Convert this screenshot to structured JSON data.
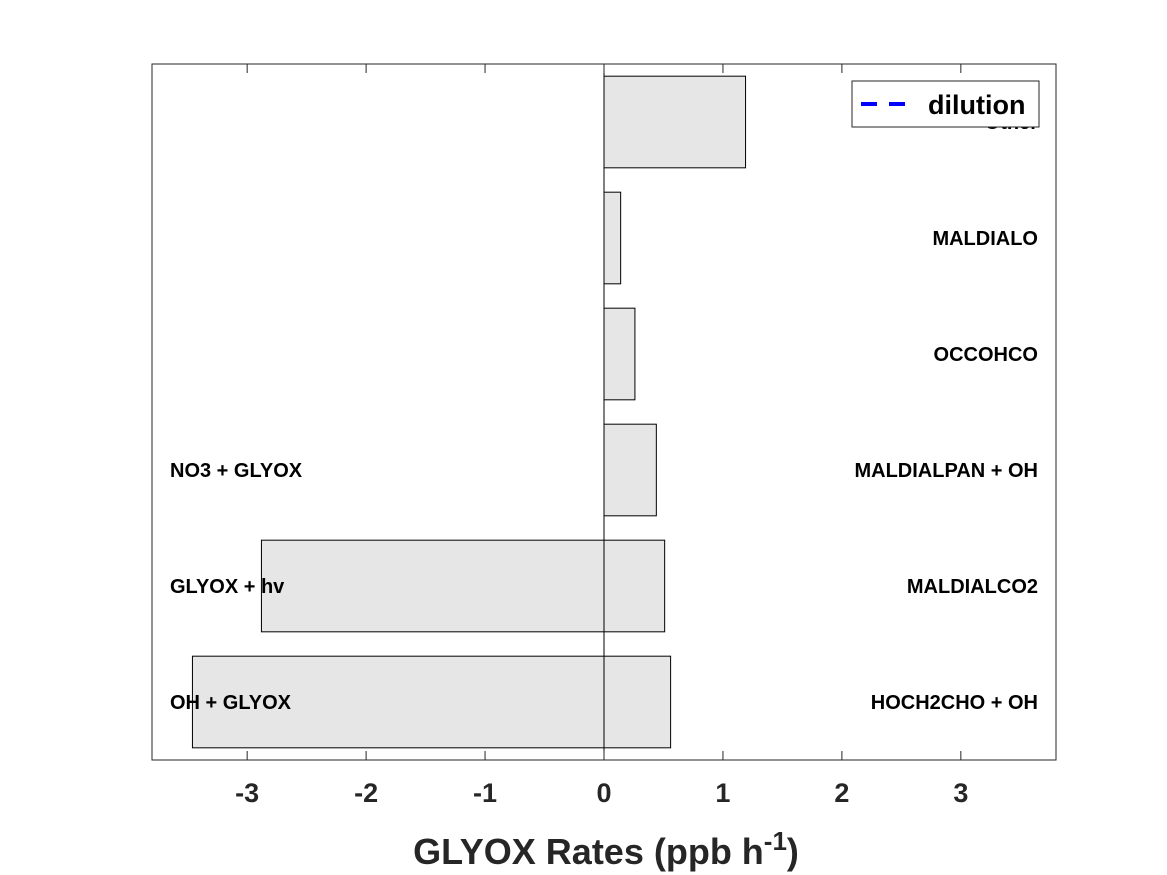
{
  "chart_data": {
    "type": "bar",
    "orientation": "horizontal",
    "xlabel_main": "GLYOX Rates (ppb h",
    "xlabel_sup": "-1",
    "xlabel_close": ")",
    "xlim": [
      -3.8,
      3.8
    ],
    "xticks": [
      -3,
      -2,
      -1,
      0,
      1,
      2,
      3
    ],
    "xtick_labels": [
      "-3",
      "-2",
      "-1",
      "0",
      "1",
      "2",
      "3"
    ],
    "grid": false,
    "bar_color": "#e6e6e6",
    "rows": [
      {
        "positive_label": "Other",
        "positive_value": 1.19,
        "negative_label": "",
        "negative_value": 0
      },
      {
        "positive_label": "MALDIALO",
        "positive_value": 0.14,
        "negative_label": "",
        "negative_value": 0
      },
      {
        "positive_label": "OCCOHCO",
        "positive_value": 0.26,
        "negative_label": "",
        "negative_value": 0
      },
      {
        "positive_label": "MALDIALPAN + OH",
        "positive_value": 0.44,
        "negative_label": "NO3 + GLYOX",
        "negative_value": 0
      },
      {
        "positive_label": "MALDIALCO2",
        "positive_value": 0.51,
        "negative_label": "GLYOX + hv",
        "negative_value": -2.88
      },
      {
        "positive_label": "HOCH2CHO + OH",
        "positive_value": 0.56,
        "negative_label": "OH + GLYOX",
        "negative_value": -3.46
      }
    ],
    "legend": {
      "placement": "top-right",
      "entries": [
        {
          "name": "dilution",
          "color": "#0000ff",
          "style": "dashed"
        }
      ]
    }
  }
}
